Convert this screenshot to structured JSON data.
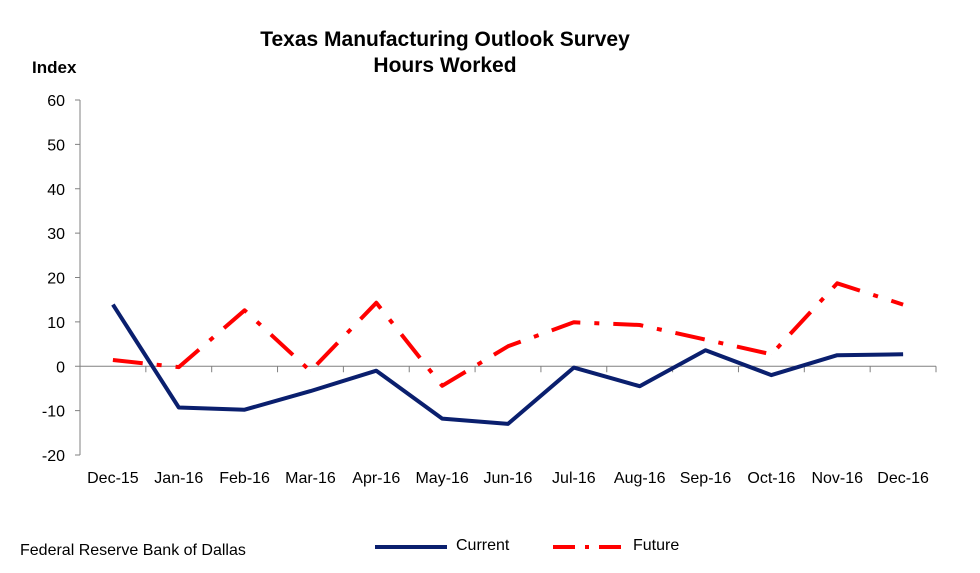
{
  "chart_data": {
    "type": "line",
    "title_lines": [
      "Texas Manufacturing Outlook Survey",
      "Hours Worked"
    ],
    "ylabel": "Index",
    "xlabel": "",
    "categories": [
      "Dec-15",
      "Jan-16",
      "Feb-16",
      "Mar-16",
      "Apr-16",
      "May-16",
      "Jun-16",
      "Jul-16",
      "Aug-16",
      "Sep-16",
      "Oct-16",
      "Nov-16",
      "Dec-16"
    ],
    "ylim": [
      -20,
      60
    ],
    "yticks": [
      "60",
      "50",
      "40",
      "30",
      "20",
      "10",
      "0",
      "-10",
      "-20"
    ],
    "grid": false,
    "legend_position": "bottom",
    "series": [
      {
        "name": "Current",
        "color": "#0a1f6e",
        "style": "solid",
        "values": [
          13.9,
          -9.3,
          -9.8,
          -5.6,
          -1.0,
          -11.8,
          -13.0,
          -0.3,
          -4.5,
          3.6,
          -2.0,
          2.5,
          2.7
        ]
      },
      {
        "name": "Future",
        "color": "#ff0000",
        "style": "dash-dot",
        "values": [
          1.4,
          -0.2,
          12.6,
          -1.1,
          14.3,
          -4.4,
          4.5,
          9.9,
          9.3,
          6.0,
          2.7,
          18.7,
          13.9
        ]
      }
    ]
  },
  "source": "Federal Reserve Bank of Dallas"
}
